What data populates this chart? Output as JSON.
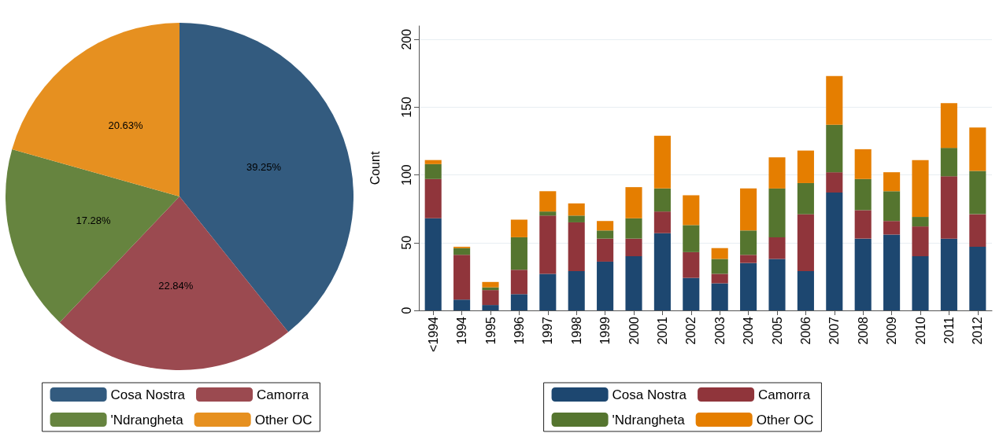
{
  "chart_data": [
    {
      "type": "pie",
      "categories": [
        "Cosa Nostra",
        "Camorra",
        "'Ndrangheta",
        "Other OC"
      ],
      "values": [
        39.25,
        22.84,
        17.28,
        20.63
      ],
      "value_labels": [
        "39.25%",
        "22.84%",
        "17.28%",
        "20.63%"
      ],
      "colors": [
        "#335b7f",
        "#9b4a50",
        "#66843f",
        "#e69020"
      ],
      "legend": "bottom"
    },
    {
      "type": "bar",
      "stacked": true,
      "ylabel": "Count",
      "categories": [
        "<1994",
        "1994",
        "1995",
        "1996",
        "1997",
        "1998",
        "1999",
        "2000",
        "2001",
        "2002",
        "2003",
        "2004",
        "2005",
        "2006",
        "2007",
        "2008",
        "2009",
        "2010",
        "2011",
        "2012"
      ],
      "series": [
        {
          "name": "Cosa Nostra",
          "color": "#1d4770",
          "values": [
            68,
            8,
            4,
            12,
            27,
            29,
            36,
            40,
            57,
            24,
            20,
            35,
            38,
            29,
            87,
            53,
            56,
            40,
            53,
            47
          ]
        },
        {
          "name": "Camorra",
          "color": "#90353b",
          "values": [
            29,
            33,
            11,
            18,
            43,
            36,
            17,
            13,
            16,
            19,
            7,
            6,
            16,
            42,
            15,
            21,
            10,
            22,
            46,
            24
          ]
        },
        {
          "name": "'Ndrangheta",
          "color": "#55752f",
          "values": [
            11,
            5,
            2,
            24,
            3,
            5,
            6,
            15,
            17,
            20,
            11,
            18,
            36,
            23,
            35,
            23,
            22,
            7,
            21,
            32
          ]
        },
        {
          "name": "Other OC",
          "color": "#e57e00",
          "values": [
            3,
            1,
            4,
            13,
            15,
            9,
            7,
            23,
            39,
            22,
            8,
            31,
            23,
            24,
            36,
            22,
            14,
            42,
            33,
            32
          ]
        }
      ],
      "ylim": [
        0,
        210
      ],
      "yticks": [
        0,
        50,
        100,
        150,
        200
      ],
      "grid": "y",
      "legend": "bottom"
    }
  ]
}
